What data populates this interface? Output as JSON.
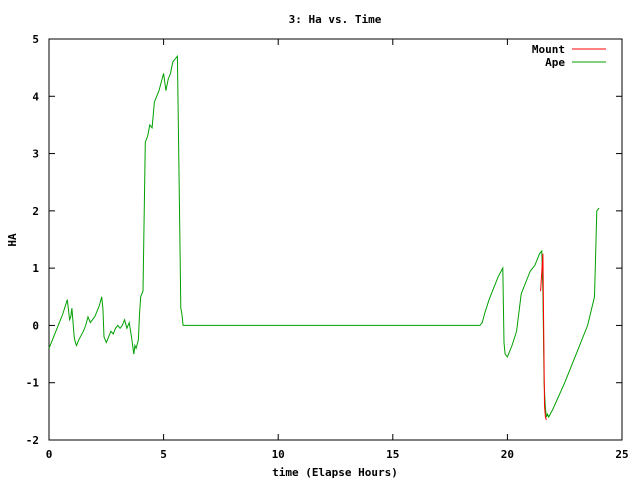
{
  "chart_data": {
    "type": "line",
    "title": "3: Ha vs. Time",
    "xlabel": "time (Elapse Hours)",
    "ylabel": "HA",
    "xlim": [
      0,
      25
    ],
    "ylim": [
      -2,
      5
    ],
    "xticks": [
      0,
      5,
      10,
      15,
      20,
      25
    ],
    "yticks": [
      -2,
      -1,
      0,
      1,
      2,
      3,
      4,
      5
    ],
    "grid": false,
    "legend": "top-right",
    "series": [
      {
        "name": "Mount",
        "color": "#ff0000",
        "x": [
          21.45,
          21.55,
          21.62,
          21.66,
          21.7
        ],
        "y": [
          0.6,
          1.25,
          -1.4,
          -1.6,
          -1.65
        ]
      },
      {
        "name": "Ape",
        "color": "#00a000",
        "x": [
          0.0,
          0.2,
          0.4,
          0.6,
          0.8,
          0.9,
          0.95,
          1.0,
          1.1,
          1.15,
          1.2,
          1.3,
          1.5,
          1.6,
          1.7,
          1.8,
          1.9,
          2.0,
          2.1,
          2.2,
          2.3,
          2.35,
          2.4,
          2.5,
          2.6,
          2.7,
          2.8,
          2.9,
          3.0,
          3.1,
          3.2,
          3.3,
          3.4,
          3.5,
          3.6,
          3.7,
          3.75,
          3.8,
          3.9,
          3.95,
          4.0,
          4.1,
          4.2,
          4.3,
          4.4,
          4.5,
          4.6,
          4.7,
          4.8,
          4.9,
          5.0,
          5.1,
          5.2,
          5.3,
          5.4,
          5.5,
          5.6,
          5.7,
          5.75,
          5.8,
          5.85,
          5.9,
          6.0,
          10.0,
          15.0,
          18.8,
          18.9,
          19.0,
          19.2,
          19.4,
          19.6,
          19.8,
          19.85,
          19.9,
          20.0,
          20.2,
          20.4,
          20.6,
          20.8,
          21.0,
          21.2,
          21.4,
          21.5,
          21.55,
          21.6,
          21.65,
          21.7,
          21.75,
          21.8,
          22.0,
          22.5,
          23.0,
          23.5,
          23.8,
          23.9,
          24.0
        ],
        "y": [
          -0.4,
          -0.2,
          0.0,
          0.2,
          0.45,
          0.1,
          0.15,
          0.3,
          -0.2,
          -0.3,
          -0.35,
          -0.25,
          -0.1,
          0.0,
          0.15,
          0.05,
          0.1,
          0.15,
          0.25,
          0.35,
          0.5,
          0.3,
          -0.2,
          -0.3,
          -0.2,
          -0.1,
          -0.15,
          -0.05,
          0.0,
          -0.05,
          0.0,
          0.1,
          -0.05,
          0.05,
          -0.2,
          -0.5,
          -0.35,
          -0.4,
          -0.25,
          0.2,
          0.5,
          0.6,
          3.2,
          3.3,
          3.5,
          3.45,
          3.9,
          4.0,
          4.1,
          4.25,
          4.4,
          4.1,
          4.3,
          4.4,
          4.6,
          4.65,
          4.7,
          1.9,
          0.3,
          0.2,
          0.0,
          0.0,
          0.0,
          0.0,
          0.0,
          0.0,
          0.05,
          0.2,
          0.45,
          0.65,
          0.85,
          1.0,
          -0.3,
          -0.5,
          -0.55,
          -0.35,
          -0.1,
          0.55,
          0.75,
          0.95,
          1.05,
          1.25,
          1.3,
          0.6,
          -1.0,
          -1.4,
          -1.6,
          -1.55,
          -1.6,
          -1.45,
          -1.0,
          -0.5,
          0.0,
          0.5,
          2.0,
          2.05
        ]
      }
    ]
  }
}
